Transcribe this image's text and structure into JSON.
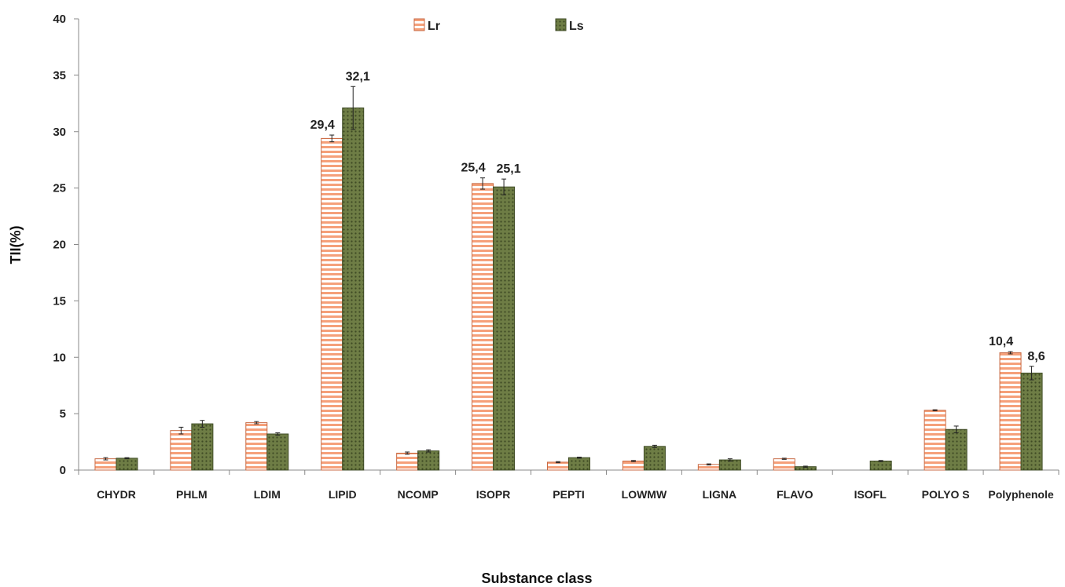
{
  "chart_data": {
    "type": "bar",
    "xlabel": "Substance class",
    "ylabel": "TII(%)",
    "ylim": [
      0,
      40
    ],
    "yticks": [
      0,
      5,
      10,
      15,
      20,
      25,
      30,
      35,
      40
    ],
    "grid": false,
    "legend_position": "top-center",
    "categories": [
      "CHYDR",
      "PHLM",
      "LDIM",
      "LIPID",
      "NCOMP",
      "ISOPR",
      "PEPTI",
      "LOWMW",
      "LIGNA",
      "FLAVO",
      "ISOFL",
      "POLYO S",
      "Polyphenole"
    ],
    "series": [
      {
        "name": "Lr",
        "color": "#f5a07a",
        "pattern": "horizontal-stripes",
        "values": [
          1.0,
          3.5,
          4.2,
          29.4,
          1.5,
          25.4,
          0.7,
          0.8,
          0.5,
          1.0,
          0.0,
          5.3,
          10.4
        ],
        "errors": [
          0.1,
          0.3,
          0.1,
          0.3,
          0.1,
          0.5,
          0.05,
          0.05,
          0.05,
          0.05,
          0.0,
          0.05,
          0.1
        ]
      },
      {
        "name": "Ls",
        "color": "#5c6b3a",
        "pattern": "crosshatch",
        "values": [
          1.05,
          4.1,
          3.2,
          32.1,
          1.7,
          25.1,
          1.1,
          2.1,
          0.9,
          0.3,
          0.8,
          3.6,
          8.6
        ],
        "errors": [
          0.05,
          0.3,
          0.1,
          1.9,
          0.1,
          0.7,
          0.05,
          0.1,
          0.1,
          0.05,
          0.05,
          0.3,
          0.6
        ]
      }
    ],
    "data_labels": [
      {
        "series": 0,
        "index": 3,
        "text": "29,4"
      },
      {
        "series": 1,
        "index": 3,
        "text": "32,1"
      },
      {
        "series": 0,
        "index": 5,
        "text": "25,4"
      },
      {
        "series": 1,
        "index": 5,
        "text": "25,1"
      },
      {
        "series": 0,
        "index": 12,
        "text": "10,4"
      },
      {
        "series": 1,
        "index": 12,
        "text": "8,6"
      }
    ]
  }
}
